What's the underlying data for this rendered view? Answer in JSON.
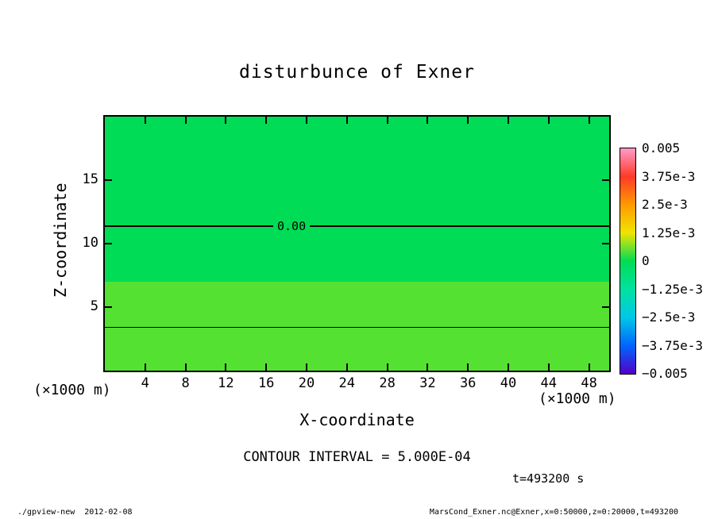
{
  "chart_data": {
    "type": "heatmap",
    "title": "disturbunce of Exner",
    "xlabel": "X-coordinate",
    "ylabel": "Z-coordinate",
    "x_unit_label": "(×1000 m)",
    "y_unit_label": "(×1000 m)",
    "xlim": [
      0,
      50
    ],
    "ylim": [
      0,
      20
    ],
    "x_ticks": [
      4,
      8,
      12,
      16,
      20,
      24,
      28,
      32,
      36,
      40,
      44,
      48
    ],
    "y_ticks": [
      5,
      10,
      15
    ],
    "fill_bands": [
      {
        "z_from": 7,
        "z_to": 20,
        "color": "#00DC55"
      },
      {
        "z_from": 0,
        "z_to": 7,
        "color": "#55E132"
      }
    ],
    "contours": [
      {
        "z": 11.4,
        "label": "0.00",
        "width": 2
      },
      {
        "z": 3.4,
        "label": "",
        "width": 1
      }
    ],
    "colorbar": {
      "labels": [
        "0.005",
        "3.75e-3",
        "2.5e-3",
        "1.25e-3",
        "0",
        "−1.25e-3",
        "−2.5e-3",
        "−3.75e-3",
        "−0.005"
      ],
      "stops": [
        "#FF9CC8",
        "#FF3A28",
        "#FF9A00",
        "#F0E400",
        "#00DC55",
        "#00E2A0",
        "#00C8E8",
        "#0066FF",
        "#5200C8"
      ]
    }
  },
  "annotations": {
    "contour_interval": "CONTOUR INTERVAL = 5.000E-04",
    "time": "t=493200 s"
  },
  "footer": {
    "left": "./gpview-new  2012-02-08",
    "right": "MarsCond_Exner.nc@Exner,x=0:50000,z=0:20000,t=493200"
  }
}
